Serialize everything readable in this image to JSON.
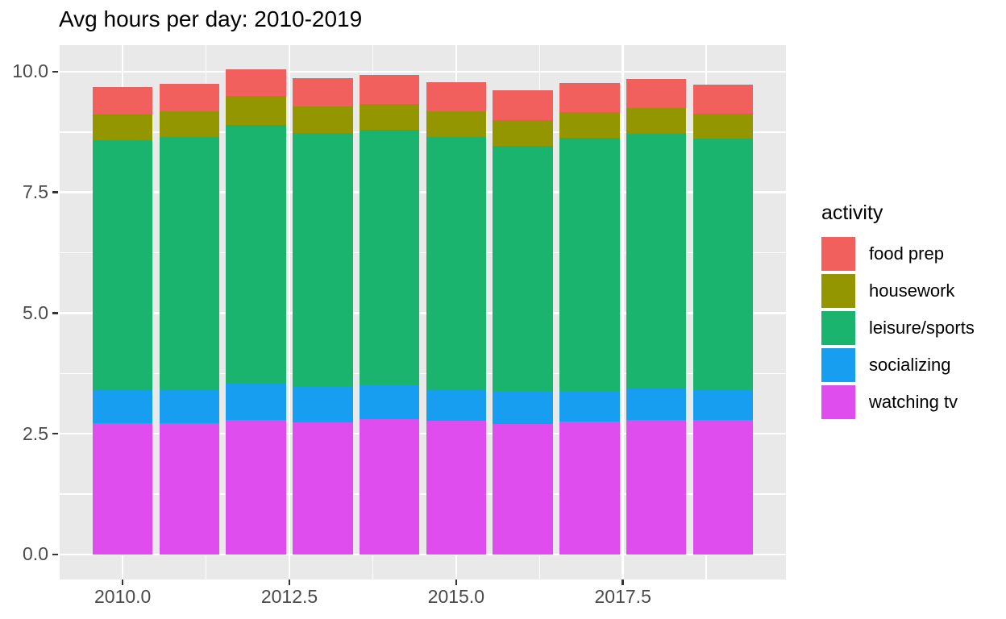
{
  "chart_data": {
    "type": "bar",
    "stacked": true,
    "title": "Avg hours per day: 2010-2019",
    "xlabel": "",
    "ylabel": "",
    "legend_title": "activity",
    "legend_position": "right",
    "grid": true,
    "x": [
      2010,
      2011,
      2012,
      2013,
      2014,
      2015,
      2016,
      2017,
      2018,
      2019
    ],
    "series": [
      {
        "name": "food prep",
        "color": "#F2605D",
        "values": [
          0.58,
          0.57,
          0.56,
          0.58,
          0.6,
          0.61,
          0.62,
          0.61,
          0.6,
          0.61
        ]
      },
      {
        "name": "housework",
        "color": "#949600",
        "values": [
          0.53,
          0.54,
          0.59,
          0.55,
          0.53,
          0.54,
          0.54,
          0.53,
          0.54,
          0.51
        ]
      },
      {
        "name": "leisure/sports",
        "color": "#1AB46E",
        "values": [
          5.17,
          5.22,
          5.36,
          5.25,
          5.3,
          5.23,
          5.08,
          5.25,
          5.28,
          5.21
        ]
      },
      {
        "name": "socializing",
        "color": "#189EF0",
        "values": [
          0.69,
          0.7,
          0.75,
          0.74,
          0.7,
          0.64,
          0.67,
          0.62,
          0.65,
          0.63
        ]
      },
      {
        "name": "watching tv",
        "color": "#E04DEF",
        "values": [
          2.72,
          2.72,
          2.79,
          2.74,
          2.8,
          2.77,
          2.71,
          2.76,
          2.78,
          2.78
        ]
      }
    ],
    "stack_order_bottom_to_top": [
      "watching tv",
      "socializing",
      "leisure/sports",
      "housework",
      "food prep"
    ],
    "bar_width": 0.9,
    "x_ticks": {
      "values": [
        2010.0,
        2012.5,
        2015.0,
        2017.5
      ],
      "labels": [
        "2010.0",
        "2012.5",
        "2015.0",
        "2017.5"
      ]
    },
    "y_ticks": {
      "values": [
        0.0,
        2.5,
        5.0,
        7.5,
        10.0
      ],
      "labels": [
        "0.0",
        "2.5",
        "5.0",
        "7.5",
        "10.0"
      ]
    },
    "x_minor": [
      2011.25,
      2013.75,
      2016.25,
      2018.75
    ],
    "y_minor": [
      1.25,
      3.75,
      6.25,
      8.75
    ],
    "xlim": [
      2009.055,
      2019.945
    ],
    "ylim": [
      -0.52,
      10.55
    ],
    "colors": {
      "panel_background": "#E9E9E9",
      "gridline": "#FFFFFF",
      "tick_text": "#4A4A4A",
      "tick_mark": "#333333",
      "title_text": "#000000"
    }
  }
}
